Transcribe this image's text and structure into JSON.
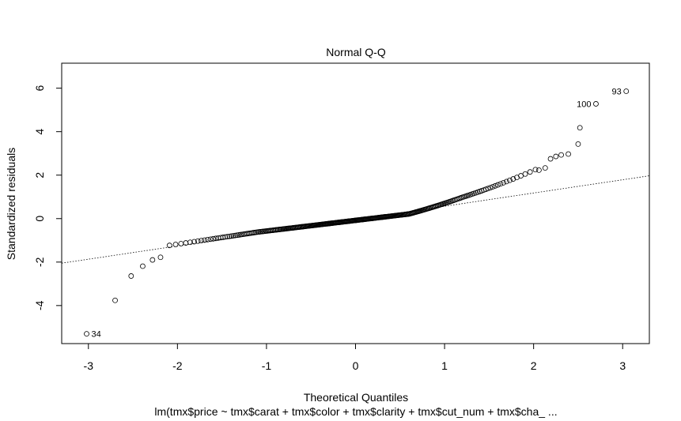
{
  "chart_data": {
    "type": "scatter",
    "title": "Normal Q-Q",
    "xlabel": "Theoretical Quantiles",
    "ylabel": "Standardized residuals",
    "subtitle": "lm(tmx$price ~ tmx$carat + tmx$color + tmx$clarity + tmx$cut_num + tmx$cha_ ...",
    "xlim": [
      -3.3,
      3.3
    ],
    "ylim": [
      -5.75,
      7.15
    ],
    "x_ticks": [
      -3,
      -2,
      -1,
      0,
      1,
      2,
      3
    ],
    "y_ticks": [
      -4,
      -2,
      0,
      2,
      4,
      6
    ],
    "x_tick_labels": [
      "-3",
      "-2",
      "-1",
      "0",
      "1",
      "2",
      "3"
    ],
    "y_tick_labels": [
      "-4",
      "-2",
      "0",
      "2",
      "4",
      "6"
    ],
    "grid": false,
    "reference_line": {
      "x": [
        -3.3,
        3.3
      ],
      "y": [
        -2.05,
        1.97
      ],
      "style": "dotted"
    },
    "n_points": 300,
    "tail_points": [
      {
        "x": -3.02,
        "y": -5.3,
        "label": "34"
      },
      {
        "x": -2.7,
        "y": -3.76
      },
      {
        "x": -2.52,
        "y": -2.64
      },
      {
        "x": -2.39,
        "y": -2.19
      },
      {
        "x": -2.28,
        "y": -1.9
      },
      {
        "x": -2.19,
        "y": -1.78
      },
      {
        "x": 2.06,
        "y": 2.23
      },
      {
        "x": 2.13,
        "y": 2.33
      },
      {
        "x": 2.19,
        "y": 2.75
      },
      {
        "x": 2.25,
        "y": 2.86
      },
      {
        "x": 2.31,
        "y": 2.93
      },
      {
        "x": 2.39,
        "y": 2.97
      },
      {
        "x": 2.5,
        "y": 3.43
      },
      {
        "x": 2.52,
        "y": 4.18
      },
      {
        "x": 2.7,
        "y": 5.28,
        "label": "100"
      },
      {
        "x": 3.04,
        "y": 5.86,
        "label": "93"
      }
    ]
  }
}
